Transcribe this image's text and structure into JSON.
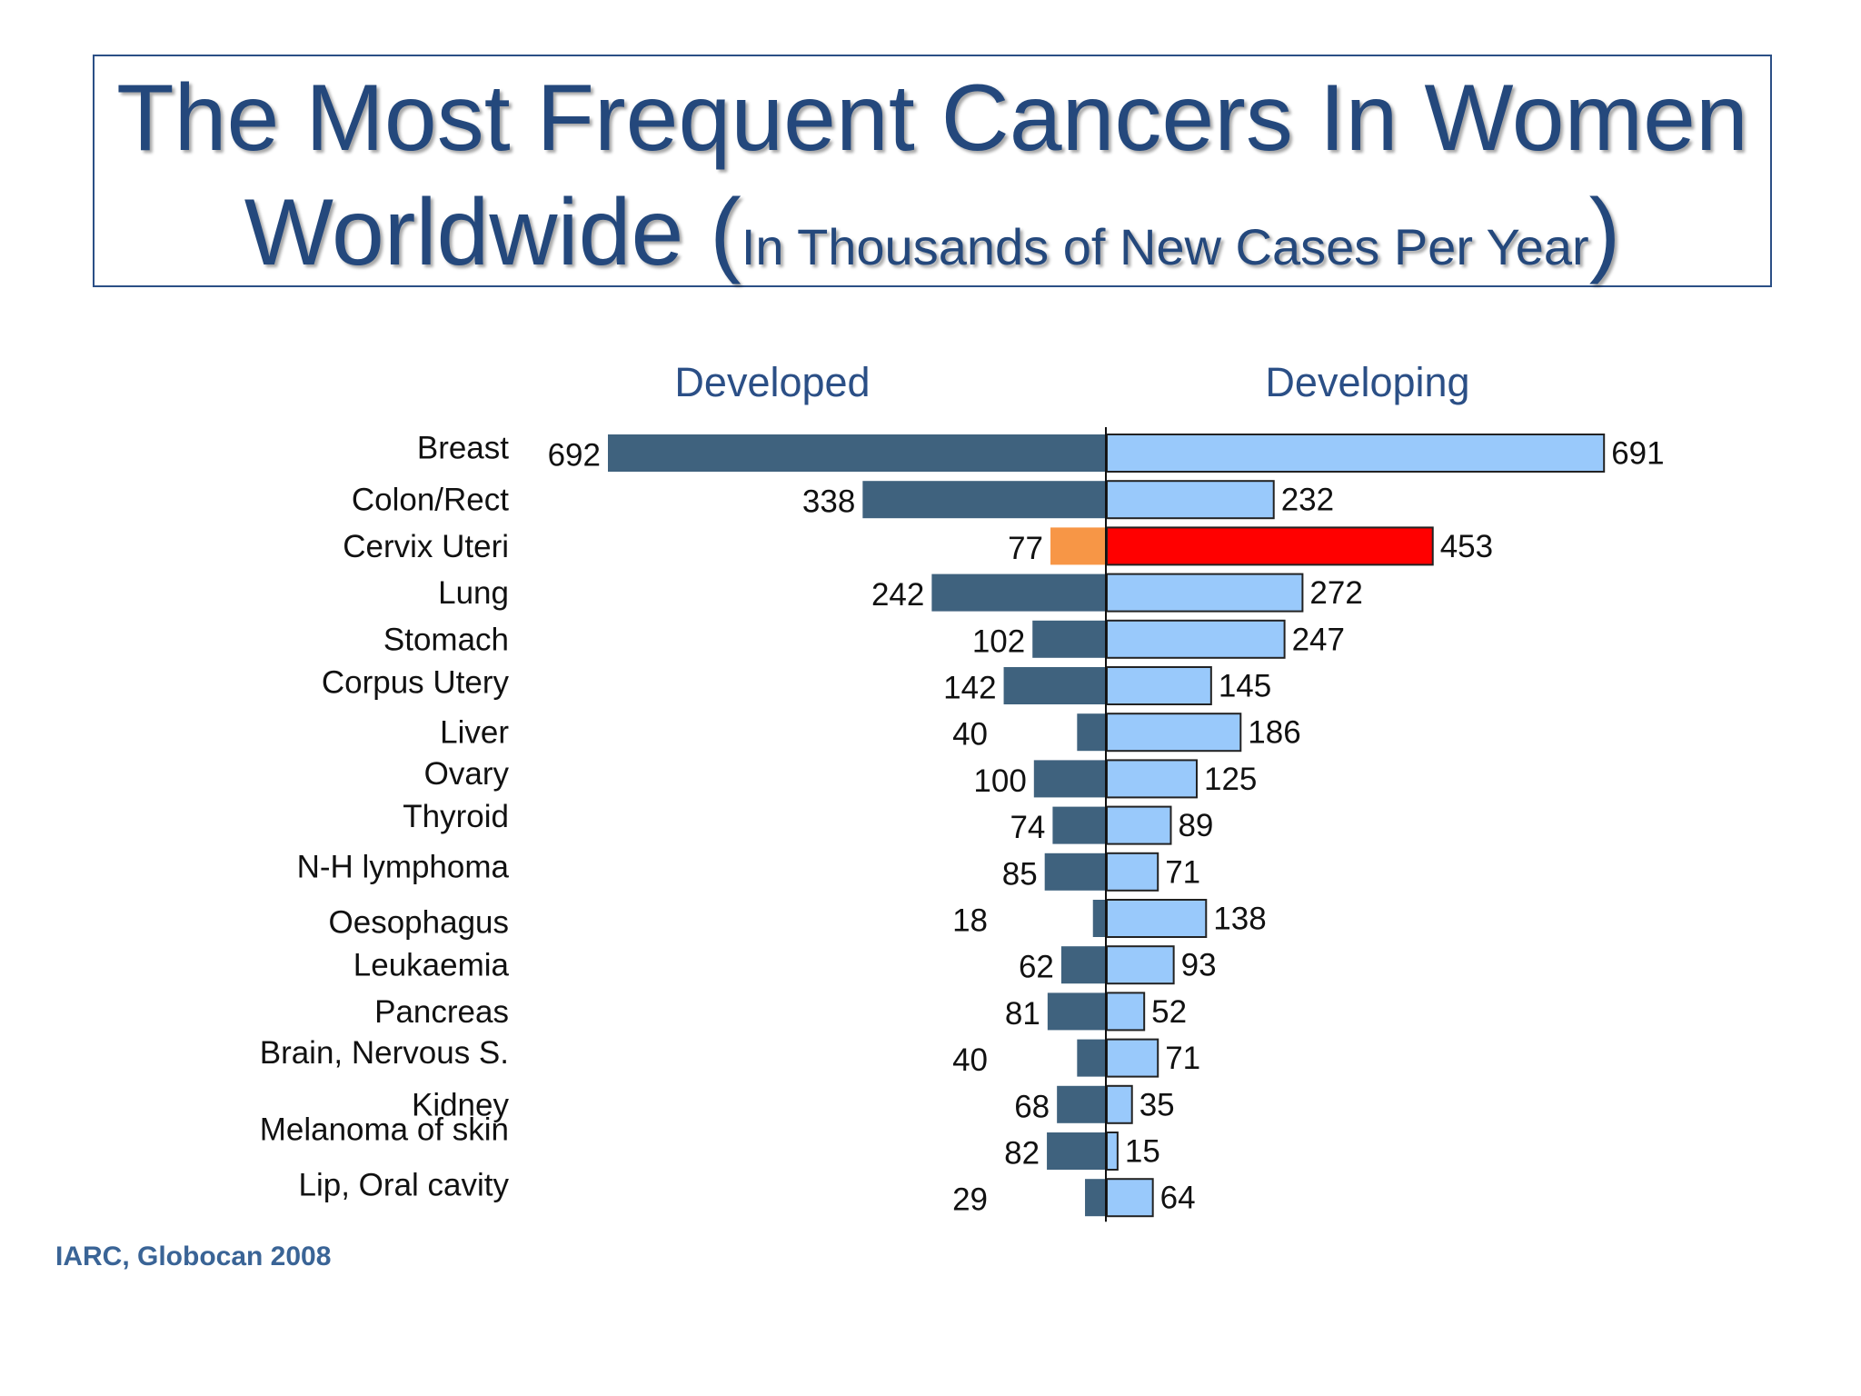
{
  "title": {
    "line1": "The Most Frequent Cancers In Women",
    "line2_main": "Worldwide (",
    "line2_sub": "In Thousands of New Cases Per Year",
    "line2_close": ")"
  },
  "source": "IARC, Globocan 2008",
  "colors": {
    "developed": "#3f627e",
    "developing": "#99c9fb",
    "developed_highlight": "#f79646",
    "developing_highlight": "#ff0000",
    "title": "#24487c",
    "heading": "#2b4f86"
  },
  "chart_data": {
    "type": "bar",
    "orientation": "horizontal-back-to-back",
    "categories": [
      "Breast",
      "Colon/Rect",
      "Cervix Uteri",
      "Lung",
      "Stomach",
      "Corpus Utery",
      "Liver",
      "Ovary",
      "Thyroid",
      "N-H lymphoma",
      "Oesophagus",
      "Leukaemia",
      "Pancreas",
      "Brain, Nervous S.",
      "Kidney",
      "Melanoma of skin",
      "Lip, Oral cavity"
    ],
    "series": [
      {
        "name": "Developed",
        "side": "left",
        "values": [
          692,
          338,
          77,
          242,
          102,
          142,
          40,
          100,
          74,
          85,
          18,
          62,
          81,
          40,
          68,
          82,
          29
        ],
        "highlight_index": 2
      },
      {
        "name": "Developing",
        "side": "right",
        "values": [
          691,
          232,
          453,
          272,
          247,
          145,
          186,
          125,
          89,
          71,
          138,
          93,
          52,
          71,
          35,
          15,
          64
        ],
        "highlight_index": 2
      }
    ],
    "grid": false
  }
}
